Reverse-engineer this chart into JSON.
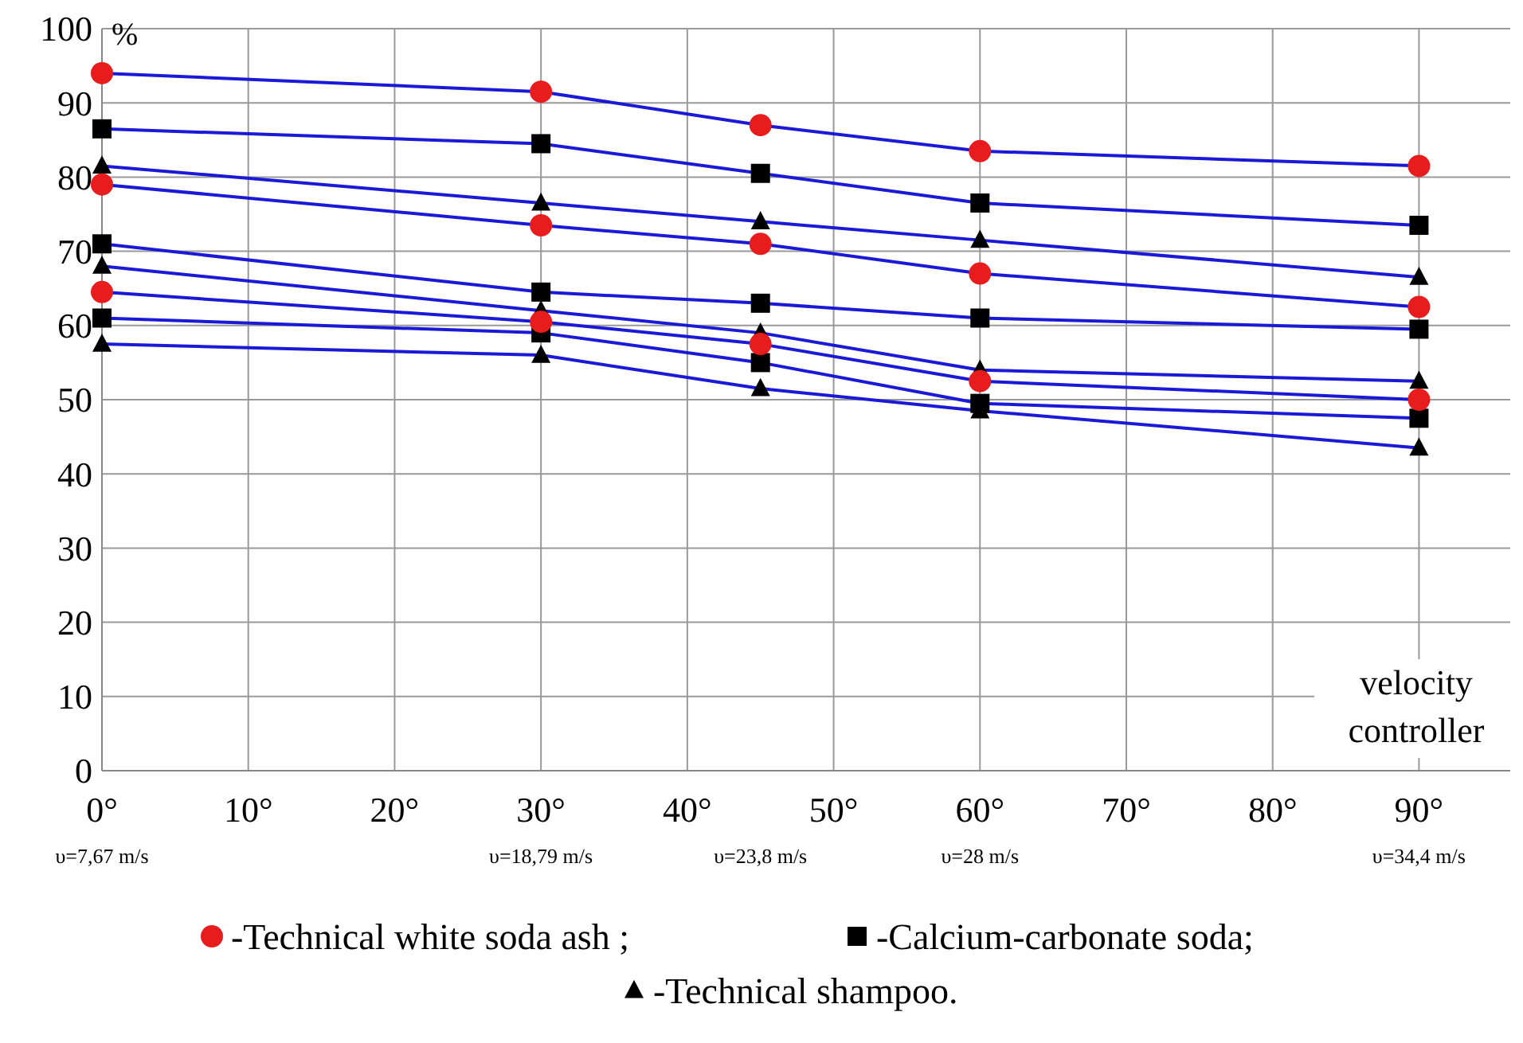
{
  "chart_data": {
    "type": "line",
    "ylabel": "%",
    "x": [
      0,
      30,
      45,
      60,
      90
    ],
    "xlim": [
      0,
      97
    ],
    "xticks": [
      {
        "value": 0,
        "label": "0°"
      },
      {
        "value": 10,
        "label": "10°"
      },
      {
        "value": 20,
        "label": "20°"
      },
      {
        "value": 30,
        "label": "30°"
      },
      {
        "value": 40,
        "label": "40°"
      },
      {
        "value": 50,
        "label": "50°"
      },
      {
        "value": 60,
        "label": "60°"
      },
      {
        "value": 70,
        "label": "70°"
      },
      {
        "value": 80,
        "label": "80°"
      },
      {
        "value": 90,
        "label": "90°"
      }
    ],
    "ylim": [
      0,
      100
    ],
    "yticks": [
      0,
      10,
      20,
      30,
      40,
      50,
      60,
      70,
      80,
      90,
      100
    ],
    "grid": true,
    "legend": "bottom",
    "line_style": "solid",
    "series": [
      {
        "name": "-Technical white soda ash ;",
        "color": "#e81c1c",
        "marker": "circle",
        "values": [
          94,
          91.5,
          87,
          83.5,
          81.5
        ]
      },
      {
        "color": "#e81c1c",
        "marker": "circle",
        "values": [
          79,
          73.5,
          71,
          67,
          62.5
        ]
      },
      {
        "color": "#e81c1c",
        "marker": "circle",
        "values": [
          64.5,
          60.5,
          57.5,
          52.5,
          50
        ]
      },
      {
        "name": "-Calcium-carbonate soda;",
        "color": "#000000",
        "marker": "square",
        "values": [
          86.5,
          84.5,
          80.5,
          76.5,
          73.5
        ]
      },
      {
        "color": "#000000",
        "marker": "square",
        "values": [
          71,
          64.5,
          63,
          61,
          59.5
        ]
      },
      {
        "color": "#000000",
        "marker": "square",
        "values": [
          61,
          59,
          55,
          49.5,
          47.5
        ]
      },
      {
        "name": "-Technical shampoo.",
        "color": "#000000",
        "marker": "triangle",
        "values": [
          81.5,
          76.5,
          74,
          71.5,
          66.5
        ]
      },
      {
        "color": "#000000",
        "marker": "triangle",
        "values": [
          68,
          62,
          59,
          54,
          52.5
        ]
      },
      {
        "color": "#000000",
        "marker": "triangle",
        "values": [
          57.5,
          56,
          51.5,
          48.5,
          43.5
        ]
      }
    ],
    "annotations": [
      "υ=7,67 m/s",
      "υ=18,79 m/s",
      "υ=23,8 m/s",
      "υ=28 m/s",
      "υ=34,4 m/s",
      "velocity controller"
    ]
  }
}
